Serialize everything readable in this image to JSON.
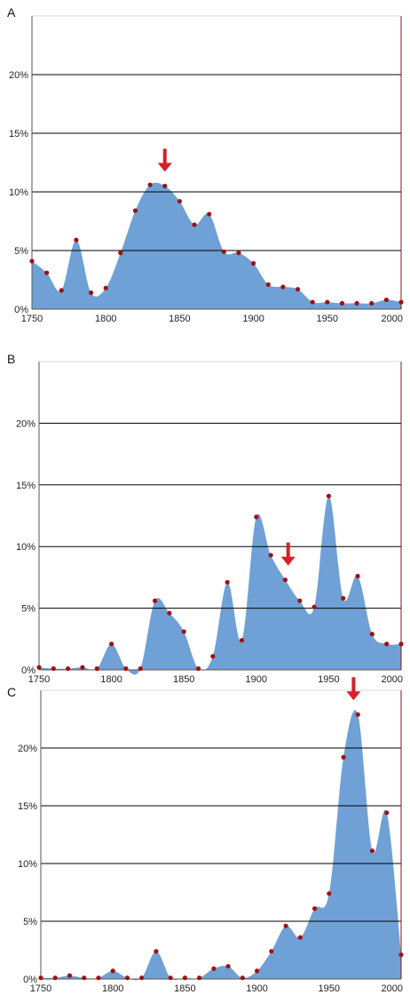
{
  "colors": {
    "area": "#6fa1d6",
    "dot": "#a01010",
    "arrow": "#d6202a",
    "grid": "#000000",
    "frame": "#7d1a1a"
  },
  "chart_data": [
    {
      "panel_label": "A",
      "type": "area",
      "xlim": [
        1750,
        2000
      ],
      "ylim": [
        0,
        0.25
      ],
      "yticks": [
        "0%",
        "5%",
        "10%",
        "15%",
        "20%"
      ],
      "xticks": [
        "1750",
        "1800",
        "1850",
        "1900",
        "1950",
        "2000"
      ],
      "grid": true,
      "x": [
        1750,
        1760,
        1770,
        1780,
        1790,
        1800,
        1810,
        1820,
        1830,
        1840,
        1850,
        1860,
        1870,
        1880,
        1890,
        1900,
        1910,
        1920,
        1930,
        1940,
        1950,
        1960,
        1970,
        1980,
        1990,
        2000
      ],
      "y": [
        0.041,
        0.031,
        0.016,
        0.059,
        0.014,
        0.018,
        0.048,
        0.084,
        0.106,
        0.105,
        0.092,
        0.072,
        0.081,
        0.049,
        0.048,
        0.039,
        0.021,
        0.019,
        0.017,
        0.006,
        0.006,
        0.005,
        0.005,
        0.005,
        0.008,
        0.006
      ],
      "arrow_x": 1840
    },
    {
      "panel_label": "B",
      "type": "area",
      "xlim": [
        1750,
        2000
      ],
      "ylim": [
        0,
        0.25
      ],
      "yticks": [
        "0%",
        "5%",
        "10%",
        "15%",
        "20%"
      ],
      "xticks": [
        "1750",
        "1800",
        "1850",
        "1900",
        "1950",
        "2000"
      ],
      "grid": true,
      "x": [
        1750,
        1760,
        1770,
        1780,
        1790,
        1800,
        1810,
        1820,
        1830,
        1840,
        1850,
        1860,
        1870,
        1880,
        1890,
        1900,
        1910,
        1920,
        1930,
        1940,
        1950,
        1960,
        1970,
        1980,
        1990,
        2000
      ],
      "y": [
        0.002,
        0.001,
        0.001,
        0.002,
        0.001,
        0.021,
        0.001,
        0.001,
        0.056,
        0.046,
        0.031,
        0.001,
        0.011,
        0.071,
        0.024,
        0.124,
        0.093,
        0.073,
        0.056,
        0.051,
        0.141,
        0.058,
        0.076,
        0.029,
        0.021,
        0.021
      ],
      "arrow_x": 1922
    },
    {
      "panel_label": "C",
      "type": "area",
      "xlim": [
        1750,
        2000
      ],
      "ylim": [
        0,
        0.25
      ],
      "yticks": [
        "0%",
        "5%",
        "10%",
        "15%",
        "20%"
      ],
      "xticks": [
        "1750",
        "1800",
        "1850",
        "1900",
        "1950",
        "2000"
      ],
      "grid": true,
      "x": [
        1750,
        1760,
        1770,
        1780,
        1790,
        1800,
        1810,
        1820,
        1830,
        1840,
        1850,
        1860,
        1870,
        1880,
        1890,
        1900,
        1910,
        1920,
        1930,
        1940,
        1950,
        1960,
        1970,
        1980,
        1990,
        2000
      ],
      "y": [
        0.001,
        0.001,
        0.003,
        0.001,
        0.001,
        0.007,
        0.001,
        0.001,
        0.024,
        0.001,
        0.001,
        0.001,
        0.009,
        0.011,
        0.001,
        0.007,
        0.024,
        0.046,
        0.036,
        0.061,
        0.074,
        0.192,
        0.229,
        0.111,
        0.144,
        0.021
      ],
      "arrow_x": 1967
    }
  ]
}
